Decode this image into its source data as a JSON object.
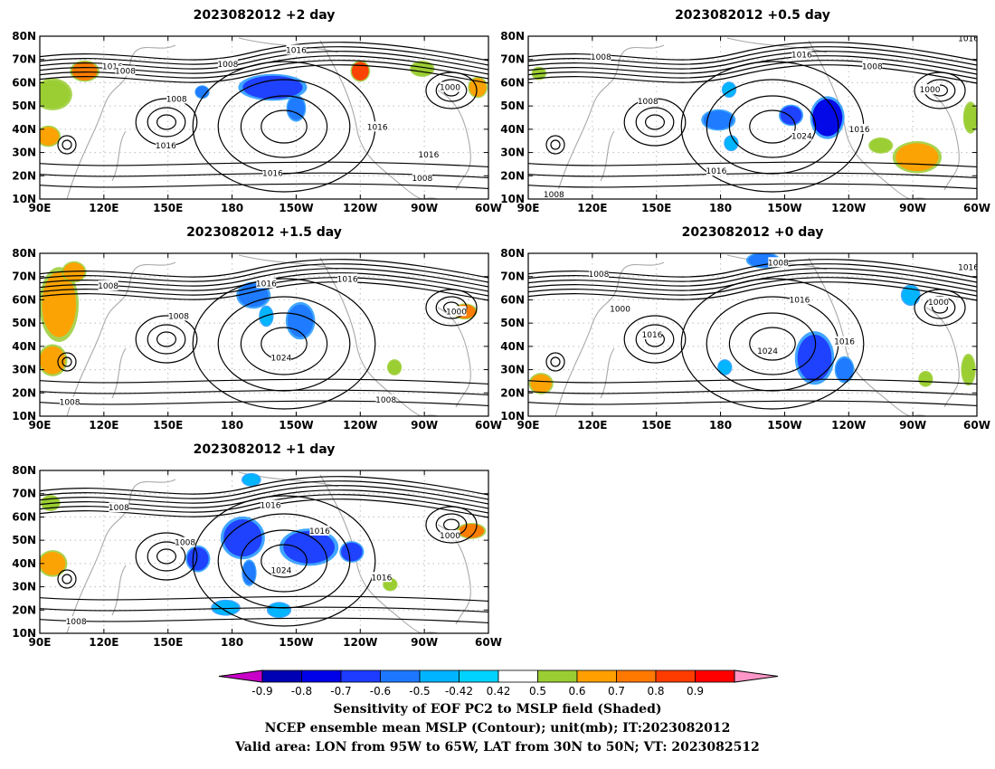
{
  "chart_data": [
    {
      "type": "heatmap",
      "title": "2023082012 +2 day",
      "lon_ticks": [
        "90E",
        "120E",
        "150E",
        "180",
        "150W",
        "120W",
        "90W",
        "60W"
      ],
      "lat_ticks": [
        "10N",
        "20N",
        "30N",
        "40N",
        "50N",
        "60N",
        "70N",
        "80N"
      ],
      "xlim": [
        90,
        300
      ],
      "ylim": [
        10,
        80
      ],
      "contour_labels": [
        {
          "label": "1016",
          "lon": 124,
          "lat": 67
        },
        {
          "label": "1008",
          "lon": 130,
          "lat": 65
        },
        {
          "label": "1016",
          "lon": 210,
          "lat": 74
        },
        {
          "label": "1008",
          "lon": 178,
          "lat": 68
        },
        {
          "label": "1008",
          "lon": 154,
          "lat": 53
        },
        {
          "label": "1016",
          "lon": 149,
          "lat": 33
        },
        {
          "label": "1016",
          "lon": 199,
          "lat": 21
        },
        {
          "label": "1000",
          "lon": 282,
          "lat": 58
        },
        {
          "label": "1016",
          "lon": 248,
          "lat": 41
        },
        {
          "label": "1016",
          "lon": 272,
          "lat": 29
        },
        {
          "label": "1008",
          "lon": 269,
          "lat": 19
        }
      ],
      "shaded_regions": [
        {
          "lon": 199,
          "lat": 58,
          "rx": 14,
          "ry": 5,
          "value": -0.7
        },
        {
          "lon": 210,
          "lat": 49,
          "rx": 4,
          "ry": 5,
          "value": -0.6
        },
        {
          "lon": 166,
          "lat": 56,
          "rx": 3,
          "ry": 2.5,
          "value": -0.6
        },
        {
          "lon": 111,
          "lat": 65,
          "rx": 6,
          "ry": 4,
          "value": 0.7
        },
        {
          "lon": 96,
          "lat": 55,
          "rx": 8,
          "ry": 6,
          "value": 0.5
        },
        {
          "lon": 240,
          "lat": 65,
          "rx": 4,
          "ry": 4,
          "value": 0.8
        },
        {
          "lon": 269,
          "lat": 66,
          "rx": 5,
          "ry": 3,
          "value": 0.5
        },
        {
          "lon": 295,
          "lat": 58,
          "rx": 4,
          "ry": 4,
          "value": 0.6
        },
        {
          "lon": 94,
          "lat": 37,
          "rx": 5,
          "ry": 4,
          "value": 0.6
        }
      ]
    },
    {
      "type": "heatmap",
      "title": "2023082012 +0.5 day",
      "lon_ticks": [
        "90E",
        "120E",
        "150E",
        "180",
        "150W",
        "120W",
        "90W",
        "60W"
      ],
      "lat_ticks": [
        "10N",
        "20N",
        "30N",
        "40N",
        "50N",
        "60N",
        "70N",
        "80N"
      ],
      "xlim": [
        90,
        300
      ],
      "ylim": [
        10,
        80
      ],
      "contour_labels": [
        {
          "label": "1016",
          "lon": 296,
          "lat": 79
        },
        {
          "label": "1016",
          "lon": 218,
          "lat": 72
        },
        {
          "label": "1008",
          "lon": 124,
          "lat": 71
        },
        {
          "label": "1008",
          "lon": 251,
          "lat": 67
        },
        {
          "label": "1000",
          "lon": 278,
          "lat": 57
        },
        {
          "label": "1008",
          "lon": 146,
          "lat": 52
        },
        {
          "label": "1016",
          "lon": 245,
          "lat": 40
        },
        {
          "label": "1024",
          "lon": 218,
          "lat": 37
        },
        {
          "label": "1016",
          "lon": 178,
          "lat": 22
        },
        {
          "label": "1008",
          "lon": 102,
          "lat": 12
        }
      ],
      "shaded_regions": [
        {
          "lon": 230,
          "lat": 45,
          "rx": 7,
          "ry": 8,
          "value": -0.8
        },
        {
          "lon": 213,
          "lat": 46,
          "rx": 5,
          "ry": 4,
          "value": -0.7
        },
        {
          "lon": 179,
          "lat": 44,
          "rx": 7,
          "ry": 4,
          "value": -0.6
        },
        {
          "lon": 184,
          "lat": 57,
          "rx": 3,
          "ry": 3,
          "value": -0.5
        },
        {
          "lon": 185,
          "lat": 34,
          "rx": 3,
          "ry": 3,
          "value": -0.5
        },
        {
          "lon": 272,
          "lat": 28,
          "rx": 10,
          "ry": 6,
          "value": 0.6
        },
        {
          "lon": 255,
          "lat": 33,
          "rx": 5,
          "ry": 3,
          "value": 0.5
        },
        {
          "lon": 297,
          "lat": 45,
          "rx": 3,
          "ry": 6,
          "value": 0.5
        },
        {
          "lon": 95,
          "lat": 64,
          "rx": 3,
          "ry": 2.5,
          "value": 0.5
        }
      ]
    },
    {
      "type": "heatmap",
      "title": "2023082012 +1.5 day",
      "lon_ticks": [
        "90E",
        "120E",
        "150E",
        "180",
        "150W",
        "120W",
        "90W",
        "60W"
      ],
      "lat_ticks": [
        "10N",
        "20N",
        "30N",
        "40N",
        "50N",
        "60N",
        "70N",
        "80N"
      ],
      "xlim": [
        90,
        300
      ],
      "ylim": [
        10,
        80
      ],
      "contour_labels": [
        {
          "label": "1008",
          "lon": 122,
          "lat": 66
        },
        {
          "label": "1016",
          "lon": 196,
          "lat": 67
        },
        {
          "label": "1016",
          "lon": 234,
          "lat": 69
        },
        {
          "label": "1008",
          "lon": 155,
          "lat": 53
        },
        {
          "label": "1000",
          "lon": 285,
          "lat": 55
        },
        {
          "label": "1024",
          "lon": 203,
          "lat": 35
        },
        {
          "label": "1008",
          "lon": 252,
          "lat": 17
        },
        {
          "label": "1008",
          "lon": 104,
          "lat": 16
        }
      ],
      "shaded_regions": [
        {
          "lon": 212,
          "lat": 51,
          "rx": 6,
          "ry": 7,
          "value": -0.6
        },
        {
          "lon": 190,
          "lat": 62,
          "rx": 7,
          "ry": 5,
          "value": -0.6
        },
        {
          "lon": 196,
          "lat": 53,
          "rx": 3,
          "ry": 4,
          "value": -0.5
        },
        {
          "lon": 99,
          "lat": 58,
          "rx": 8,
          "ry": 14,
          "value": 0.6
        },
        {
          "lon": 106,
          "lat": 72,
          "rx": 5,
          "ry": 4,
          "value": 0.6
        },
        {
          "lon": 96,
          "lat": 34,
          "rx": 6,
          "ry": 6,
          "value": 0.6
        },
        {
          "lon": 289,
          "lat": 55,
          "rx": 5,
          "ry": 3,
          "value": 0.7
        },
        {
          "lon": 256,
          "lat": 31,
          "rx": 3,
          "ry": 3,
          "value": 0.5
        }
      ]
    },
    {
      "type": "heatmap",
      "title": "2023082012 +0 day",
      "lon_ticks": [
        "90E",
        "120E",
        "150E",
        "180",
        "150W",
        "120W",
        "90W",
        "60W"
      ],
      "lat_ticks": [
        "10N",
        "20N",
        "30N",
        "40N",
        "50N",
        "60N",
        "70N",
        "80N"
      ],
      "xlim": [
        90,
        300
      ],
      "ylim": [
        10,
        80
      ],
      "contour_labels": [
        {
          "label": "1008",
          "lon": 207,
          "lat": 76
        },
        {
          "label": "1016",
          "lon": 296,
          "lat": 74
        },
        {
          "label": "1008",
          "lon": 123,
          "lat": 71
        },
        {
          "label": "1016",
          "lon": 217,
          "lat": 60
        },
        {
          "label": "1000",
          "lon": 282,
          "lat": 59
        },
        {
          "label": "1000",
          "lon": 133,
          "lat": 56
        },
        {
          "label": "1016",
          "lon": 148,
          "lat": 45
        },
        {
          "label": "1024",
          "lon": 202,
          "lat": 38
        },
        {
          "label": "1016",
          "lon": 238,
          "lat": 42
        }
      ],
      "shaded_regions": [
        {
          "lon": 224,
          "lat": 35,
          "rx": 8,
          "ry": 10,
          "value": -0.7
        },
        {
          "lon": 238,
          "lat": 30,
          "rx": 4,
          "ry": 5,
          "value": -0.6
        },
        {
          "lon": 200,
          "lat": 77,
          "rx": 7,
          "ry": 3,
          "value": -0.6
        },
        {
          "lon": 182,
          "lat": 31,
          "rx": 3,
          "ry": 3,
          "value": -0.5
        },
        {
          "lon": 269,
          "lat": 62,
          "rx": 4,
          "ry": 4,
          "value": -0.5
        },
        {
          "lon": 96,
          "lat": 24,
          "rx": 5,
          "ry": 4,
          "value": 0.6
        },
        {
          "lon": 296,
          "lat": 30,
          "rx": 3,
          "ry": 6,
          "value": 0.5
        },
        {
          "lon": 276,
          "lat": 26,
          "rx": 3,
          "ry": 3,
          "value": 0.5
        }
      ]
    },
    {
      "type": "heatmap",
      "title": "2023082012 +1 day",
      "lon_ticks": [
        "90E",
        "120E",
        "150E",
        "180",
        "150W",
        "120W",
        "90W",
        "60W"
      ],
      "lat_ticks": [
        "10N",
        "20N",
        "30N",
        "40N",
        "50N",
        "60N",
        "70N",
        "80N"
      ],
      "xlim": [
        90,
        300
      ],
      "ylim": [
        10,
        80
      ],
      "contour_labels": [
        {
          "label": "1008",
          "lon": 127,
          "lat": 64
        },
        {
          "label": "1016",
          "lon": 198,
          "lat": 65
        },
        {
          "label": "1016",
          "lon": 221,
          "lat": 54
        },
        {
          "label": "1008",
          "lon": 158,
          "lat": 49
        },
        {
          "label": "1000",
          "lon": 282,
          "lat": 52
        },
        {
          "label": "1024",
          "lon": 203,
          "lat": 37
        },
        {
          "label": "1016",
          "lon": 250,
          "lat": 34
        },
        {
          "label": "1008",
          "lon": 107,
          "lat": 15
        }
      ],
      "shaded_regions": [
        {
          "lon": 216,
          "lat": 47,
          "rx": 12,
          "ry": 7,
          "value": -0.7
        },
        {
          "lon": 236,
          "lat": 45,
          "rx": 5,
          "ry": 4,
          "value": -0.7
        },
        {
          "lon": 185,
          "lat": 51,
          "rx": 9,
          "ry": 8,
          "value": -0.7
        },
        {
          "lon": 164,
          "lat": 42,
          "rx": 5,
          "ry": 5,
          "value": -0.7
        },
        {
          "lon": 188,
          "lat": 36,
          "rx": 3,
          "ry": 5,
          "value": -0.6
        },
        {
          "lon": 177,
          "lat": 21,
          "rx": 6,
          "ry": 3,
          "value": -0.5
        },
        {
          "lon": 202,
          "lat": 20,
          "rx": 5,
          "ry": 3,
          "value": -0.5
        },
        {
          "lon": 189,
          "lat": 76,
          "rx": 4,
          "ry": 2.5,
          "value": -0.5
        },
        {
          "lon": 96,
          "lat": 40,
          "rx": 6,
          "ry": 5,
          "value": 0.6
        },
        {
          "lon": 95,
          "lat": 66,
          "rx": 4,
          "ry": 3,
          "value": 0.5
        },
        {
          "lon": 292,
          "lat": 54,
          "rx": 6,
          "ry": 3,
          "value": 0.7
        },
        {
          "lon": 254,
          "lat": 31,
          "rx": 3,
          "ry": 2.5,
          "value": 0.5
        }
      ]
    }
  ],
  "colorbar": {
    "labels": [
      "-0.9",
      "-0.8",
      "-0.7",
      "-0.6",
      "-0.5",
      "-0.42",
      "0.42",
      "0.5",
      "0.6",
      "0.7",
      "0.8",
      "0.9"
    ],
    "colors": [
      "#c800c8",
      "#0000b4",
      "#0000e6",
      "#1e3cff",
      "#1e78ff",
      "#00b4ff",
      "#00d2ff",
      "#ffffff",
      "#9acd32",
      "#ffa000",
      "#ff7800",
      "#ff3c00",
      "#ff0000",
      "#ff96c8"
    ]
  },
  "caption": {
    "line1": "Sensitivity of EOF PC2 to MSLP field (Shaded)",
    "line2": "NCEP ensemble mean MSLP (Contour); unit(mb); IT:2023082012",
    "line3": "Valid area: LON from 95W to 65W, LAT from 30N to 50N; VT: 2023082512"
  }
}
